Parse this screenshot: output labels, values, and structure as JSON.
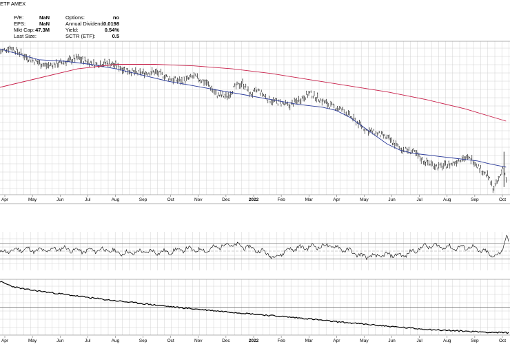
{
  "header": {
    "ticker_info": "ETF  AMEX",
    "stats_left": [
      {
        "label": "P/E:",
        "value": "NaN"
      },
      {
        "label": "EPS:",
        "value": "NaN"
      },
      {
        "label": "Mkt Cap:",
        "value": "47.3M"
      },
      {
        "label": "Last Size:",
        "value": ""
      }
    ],
    "stats_right": [
      {
        "label": "Options:",
        "value": "no"
      },
      {
        "label": "Annual Dividend:",
        "value": "0.0198"
      },
      {
        "label": "Yield:",
        "value": "0.54%"
      },
      {
        "label": "SCTR (ETF):",
        "value": "0.5"
      }
    ]
  },
  "colors": {
    "price_bars": "#000000",
    "ma_short": "#2a3a9a",
    "ma_long": "#c8204a",
    "rsi_fill": "#8b3a3a",
    "grid": "#d0d0d0"
  },
  "chart_data": [
    {
      "type": "ohlc",
      "panel": "price",
      "x_axis": {
        "ticks": [
          "Apr",
          "May",
          "Jun",
          "Jul",
          "Aug",
          "Sep",
          "Oct",
          "Nov",
          "Dec",
          "2022",
          "Feb",
          "Mar",
          "Apr",
          "May",
          "Jun",
          "Jul",
          "Aug",
          "Sep",
          "Oct"
        ],
        "bold_ticks": [
          "2022"
        ]
      },
      "ylim": [
        0,
        100
      ],
      "price_path": [
        [
          0,
          93
        ],
        [
          4,
          96
        ],
        [
          12,
          88
        ],
        [
          18,
          84
        ],
        [
          24,
          86
        ],
        [
          30,
          89
        ],
        [
          37,
          85
        ],
        [
          42,
          86
        ],
        [
          48,
          82
        ],
        [
          53,
          79
        ],
        [
          60,
          80
        ],
        [
          67,
          75
        ],
        [
          71,
          74
        ],
        [
          75,
          77
        ],
        [
          80,
          73
        ],
        [
          84,
          65
        ],
        [
          88,
          64
        ],
        [
          91,
          70
        ],
        [
          94,
          73
        ],
        [
          97,
          65
        ],
        [
          100,
          68
        ],
        [
          104,
          62
        ],
        [
          108,
          60
        ],
        [
          112,
          58
        ],
        [
          116,
          62
        ],
        [
          120,
          66
        ],
        [
          124,
          62
        ],
        [
          128,
          58
        ],
        [
          133,
          55
        ],
        [
          137,
          49
        ],
        [
          142,
          42
        ],
        [
          146,
          40
        ],
        [
          150,
          37
        ],
        [
          155,
          30
        ],
        [
          160,
          28
        ],
        [
          164,
          22
        ],
        [
          170,
          18
        ],
        [
          175,
          20
        ],
        [
          179,
          24
        ],
        [
          183,
          23
        ],
        [
          186,
          17
        ],
        [
          189,
          12
        ],
        [
          191,
          4
        ],
        [
          192,
          6
        ],
        [
          194,
          13
        ],
        [
          195,
          19
        ],
        [
          196,
          10
        ],
        [
          197,
          13
        ]
      ],
      "series": [
        {
          "name": "",
          "role": "short_ma",
          "x": [
            0,
            15,
            25,
            35,
            45,
            55,
            65,
            75,
            85,
            95,
            105,
            115,
            125,
            130,
            135,
            140,
            145,
            150,
            155,
            160,
            165,
            170,
            175,
            180,
            185,
            190,
            196
          ],
          "y": [
            95,
            88,
            87,
            85,
            82,
            78,
            74,
            71,
            68,
            65,
            62,
            59,
            57,
            55,
            51,
            45,
            39,
            33,
            29,
            27,
            26,
            25,
            24,
            23,
            22,
            20,
            18
          ]
        },
        {
          "name": "",
          "role": "long_ma",
          "x": [
            0,
            15,
            30,
            45,
            60,
            75,
            90,
            105,
            120,
            135,
            150,
            165,
            180,
            196
          ],
          "y": [
            70,
            76,
            82,
            85,
            85,
            84,
            82,
            79,
            75,
            71,
            67,
            62,
            56,
            48
          ]
        }
      ]
    },
    {
      "type": "line",
      "panel": "rsi",
      "ylim": [
        0,
        100
      ],
      "reference_lines": [
        30,
        50,
        70
      ],
      "series": [
        {
          "name": "",
          "x": [
            0,
            8,
            16,
            24,
            32,
            40,
            48,
            56,
            64,
            72,
            80,
            88,
            96,
            100,
            104,
            106,
            112,
            120,
            128,
            136,
            140,
            144,
            152,
            156,
            160,
            164,
            170,
            176,
            182,
            188,
            191,
            194,
            196,
            197
          ],
          "y": [
            46,
            55,
            51,
            57,
            50,
            54,
            44,
            49,
            47,
            55,
            52,
            68,
            60,
            52,
            43,
            33,
            55,
            61,
            64,
            49,
            37,
            36,
            41,
            38,
            49,
            62,
            63,
            58,
            61,
            47,
            37,
            43,
            92,
            76
          ]
        }
      ]
    },
    {
      "type": "line",
      "panel": "lower",
      "ylim": [
        0,
        100
      ],
      "reference_lines": [
        50
      ],
      "x_axis": {
        "ticks": [
          "Apr",
          "May",
          "Jun",
          "Jul",
          "Aug",
          "Sep",
          "Oct",
          "Nov",
          "Dec",
          "2022",
          "Feb",
          "Mar",
          "Apr",
          "May",
          "Jun",
          "Jul",
          "Aug",
          "Sep",
          "Oct"
        ],
        "bold_ticks": [
          "2022"
        ]
      },
      "series": [
        {
          "name": "",
          "x": [
            0,
            5,
            10,
            20,
            30,
            40,
            50,
            60,
            70,
            80,
            90,
            100,
            110,
            120,
            130,
            140,
            150,
            160,
            170,
            180,
            190,
            197
          ],
          "y": [
            96,
            87,
            82,
            76,
            70,
            64,
            59,
            54,
            49,
            45,
            41,
            37,
            33,
            29,
            24,
            20,
            16,
            12,
            9,
            7,
            5,
            4
          ]
        }
      ]
    }
  ]
}
